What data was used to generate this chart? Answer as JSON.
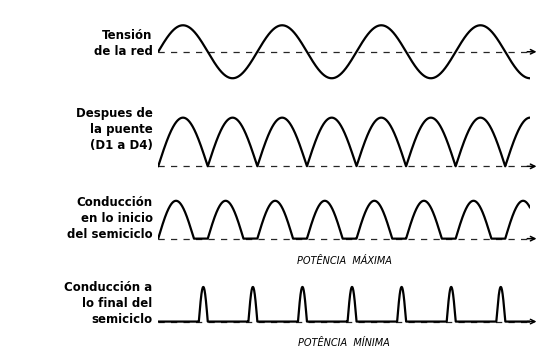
{
  "background_color": "#ffffff",
  "waveform_color": "#000000",
  "text_color": "#000000",
  "rows": [
    {
      "label_lines": [
        "Tensión",
        "de la red"
      ],
      "type": "sine_full",
      "num_cycles": 3.75,
      "annotation": null
    },
    {
      "label_lines": [
        "Despues de",
        "la puente",
        "(D1 a D4)"
      ],
      "type": "sine_rectified",
      "num_cycles": 7.5,
      "annotation": null
    },
    {
      "label_lines": [
        "Conducción",
        "en lo inicio",
        "del semiciclo"
      ],
      "type": "sine_clipped_start",
      "num_cycles": 7.5,
      "annotation": "POTÊNCIA  MÁXIMA"
    },
    {
      "label_lines": [
        "Conducción a",
        "lo final del",
        "semiciclo"
      ],
      "type": "sine_clipped_end",
      "num_cycles": 7.5,
      "annotation": "POTÊNCIA  MÍNIMA"
    }
  ],
  "label_fontsize": 8.5,
  "annotation_fontsize": 7.0,
  "fig_width": 5.55,
  "fig_height": 3.57,
  "dpi": 100
}
